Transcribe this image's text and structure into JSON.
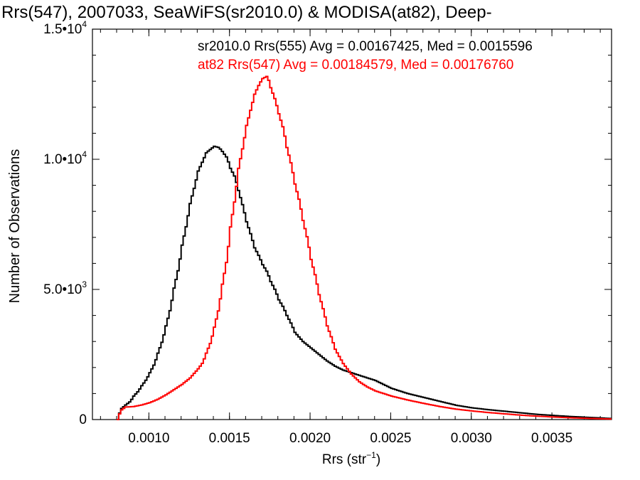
{
  "chart_data": {
    "type": "line",
    "title": "Rrs(547), 2007033, SeaWiFS(sr2010.0) & MODISA(at82), Deep-",
    "xlabel": "Rrs (str",
    "xlabel_sup": "−1",
    "xlabel_suffix": ")",
    "ylabel": "Number of Observations",
    "xlim": [
      0.00065,
      0.00387
    ],
    "ylim": [
      0,
      15000
    ],
    "xticks": [
      {
        "value": 0.001,
        "label": "0.0010"
      },
      {
        "value": 0.0015,
        "label": "0.0015"
      },
      {
        "value": 0.002,
        "label": "0.0020"
      },
      {
        "value": 0.0025,
        "label": "0.0025"
      },
      {
        "value": 0.003,
        "label": "0.0030"
      },
      {
        "value": 0.0035,
        "label": "0.0035"
      }
    ],
    "yticks": [
      {
        "value": 0,
        "label": "0",
        "exp": ""
      },
      {
        "value": 5000,
        "label": "5.0•10",
        "exp": "3"
      },
      {
        "value": 10000,
        "label": "1.0•10",
        "exp": "4"
      },
      {
        "value": 15000,
        "label": "1.5•10",
        "exp": "4"
      }
    ],
    "grid": false,
    "legend_position": "top-right",
    "series": [
      {
        "name": "sr2010.0 Rrs(555) Avg = 0.00167425, Med = 0.0015596",
        "color": "#000000",
        "x": [
          0.0008,
          0.00082,
          0.00085,
          0.00088,
          0.0009,
          0.00093,
          0.00095,
          0.00098,
          0.001,
          0.00103,
          0.00105,
          0.00108,
          0.0011,
          0.00113,
          0.00115,
          0.00118,
          0.0012,
          0.00123,
          0.00125,
          0.00128,
          0.0013,
          0.00133,
          0.00135,
          0.00138,
          0.0014,
          0.00143,
          0.00145,
          0.00148,
          0.0015,
          0.00153,
          0.00155,
          0.00158,
          0.0016,
          0.00163,
          0.00165,
          0.00168,
          0.0017,
          0.00173,
          0.00175,
          0.00178,
          0.0018,
          0.00183,
          0.00185,
          0.00188,
          0.0019,
          0.00195,
          0.002,
          0.00205,
          0.0021,
          0.00215,
          0.0022,
          0.00225,
          0.0023,
          0.00235,
          0.0024,
          0.00245,
          0.0025,
          0.0026,
          0.0027,
          0.0028,
          0.0029,
          0.003,
          0.0031,
          0.0032,
          0.0033,
          0.0034,
          0.0035,
          0.0036,
          0.0037,
          0.0038,
          0.00387
        ],
        "y": [
          0,
          400,
          560,
          700,
          900,
          1100,
          1300,
          1550,
          1800,
          2150,
          2550,
          3050,
          3600,
          4300,
          5050,
          5850,
          6700,
          7550,
          8300,
          9000,
          9550,
          9950,
          10250,
          10400,
          10500,
          10450,
          10300,
          10050,
          9650,
          9300,
          8800,
          8150,
          7600,
          7050,
          6600,
          6250,
          5950,
          5650,
          5300,
          4950,
          4600,
          4300,
          4000,
          3650,
          3350,
          3000,
          2750,
          2500,
          2250,
          2050,
          1900,
          1800,
          1700,
          1600,
          1500,
          1350,
          1200,
          1000,
          850,
          700,
          550,
          450,
          380,
          320,
          260,
          200,
          160,
          120,
          90,
          60,
          40
        ]
      },
      {
        "name": "at82 Rrs(547) Avg = 0.00184579, Med = 0.00176760",
        "color": "#ff0000",
        "x": [
          0.0008,
          0.00082,
          0.00085,
          0.0009,
          0.00095,
          0.001,
          0.00105,
          0.0011,
          0.00115,
          0.0012,
          0.00125,
          0.0013,
          0.00133,
          0.00135,
          0.00138,
          0.0014,
          0.00143,
          0.00145,
          0.00148,
          0.0015,
          0.00153,
          0.00155,
          0.00158,
          0.0016,
          0.00163,
          0.00165,
          0.00168,
          0.0017,
          0.00173,
          0.00175,
          0.00178,
          0.0018,
          0.00183,
          0.00185,
          0.00188,
          0.0019,
          0.00193,
          0.00195,
          0.00198,
          0.002,
          0.00203,
          0.00205,
          0.00208,
          0.0021,
          0.00213,
          0.00215,
          0.0022,
          0.00225,
          0.0023,
          0.00235,
          0.0024,
          0.00245,
          0.0025,
          0.0026,
          0.0027,
          0.0028,
          0.0029,
          0.003,
          0.0031,
          0.0032,
          0.0033,
          0.0034,
          0.0035,
          0.0036,
          0.0037,
          0.0038,
          0.00387
        ],
        "y": [
          0,
          350,
          480,
          500,
          560,
          650,
          780,
          950,
          1150,
          1350,
          1600,
          1950,
          2200,
          2550,
          3000,
          3550,
          4300,
          5200,
          6200,
          7400,
          8550,
          9650,
          10550,
          11300,
          12000,
          12500,
          12900,
          13100,
          13200,
          12750,
          12250,
          11750,
          11150,
          10450,
          9750,
          9050,
          8350,
          7650,
          6900,
          6150,
          5450,
          4800,
          4150,
          3600,
          3100,
          2700,
          2150,
          1750,
          1450,
          1250,
          1100,
          1000,
          900,
          750,
          620,
          500,
          400,
          330,
          270,
          220,
          170,
          130,
          100,
          70,
          50,
          30,
          20
        ]
      }
    ]
  }
}
